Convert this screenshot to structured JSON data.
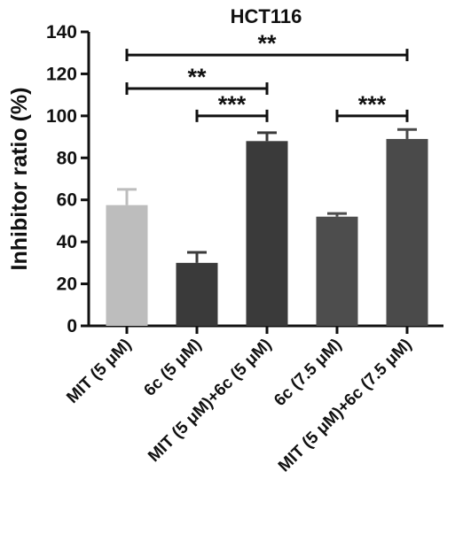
{
  "chart_data": {
    "type": "bar",
    "title": "HCT116",
    "xlabel": "",
    "ylabel": "Inhibitor ratio (%)",
    "ylim": [
      0,
      140
    ],
    "yticks": [
      0,
      20,
      40,
      60,
      80,
      100,
      120,
      140
    ],
    "grid": false,
    "legend": "none",
    "categories": [
      "MIT (5 μM)",
      "6c (5 μM)",
      "MIT (5 μM)+6c (5 μM)",
      "6c (7.5 μM)",
      "MIT (5 μM)+6c (7.5 μM)"
    ],
    "values": [
      57.5,
      30,
      88,
      52,
      89
    ],
    "errors": [
      7.5,
      5,
      4,
      1.5,
      4.5
    ],
    "bar_colors": [
      "#bdbdbd",
      "#3a3a3a",
      "#3a3a3a",
      "#4d4d4d",
      "#4a4a4a"
    ],
    "significance": [
      {
        "from": 0,
        "to": 4,
        "y": 129,
        "label": "**"
      },
      {
        "from": 0,
        "to": 2,
        "y": 113,
        "label": "**"
      },
      {
        "from": 1,
        "to": 2,
        "y": 100,
        "label": "***"
      },
      {
        "from": 3,
        "to": 4,
        "y": 100,
        "label": "***"
      }
    ]
  }
}
